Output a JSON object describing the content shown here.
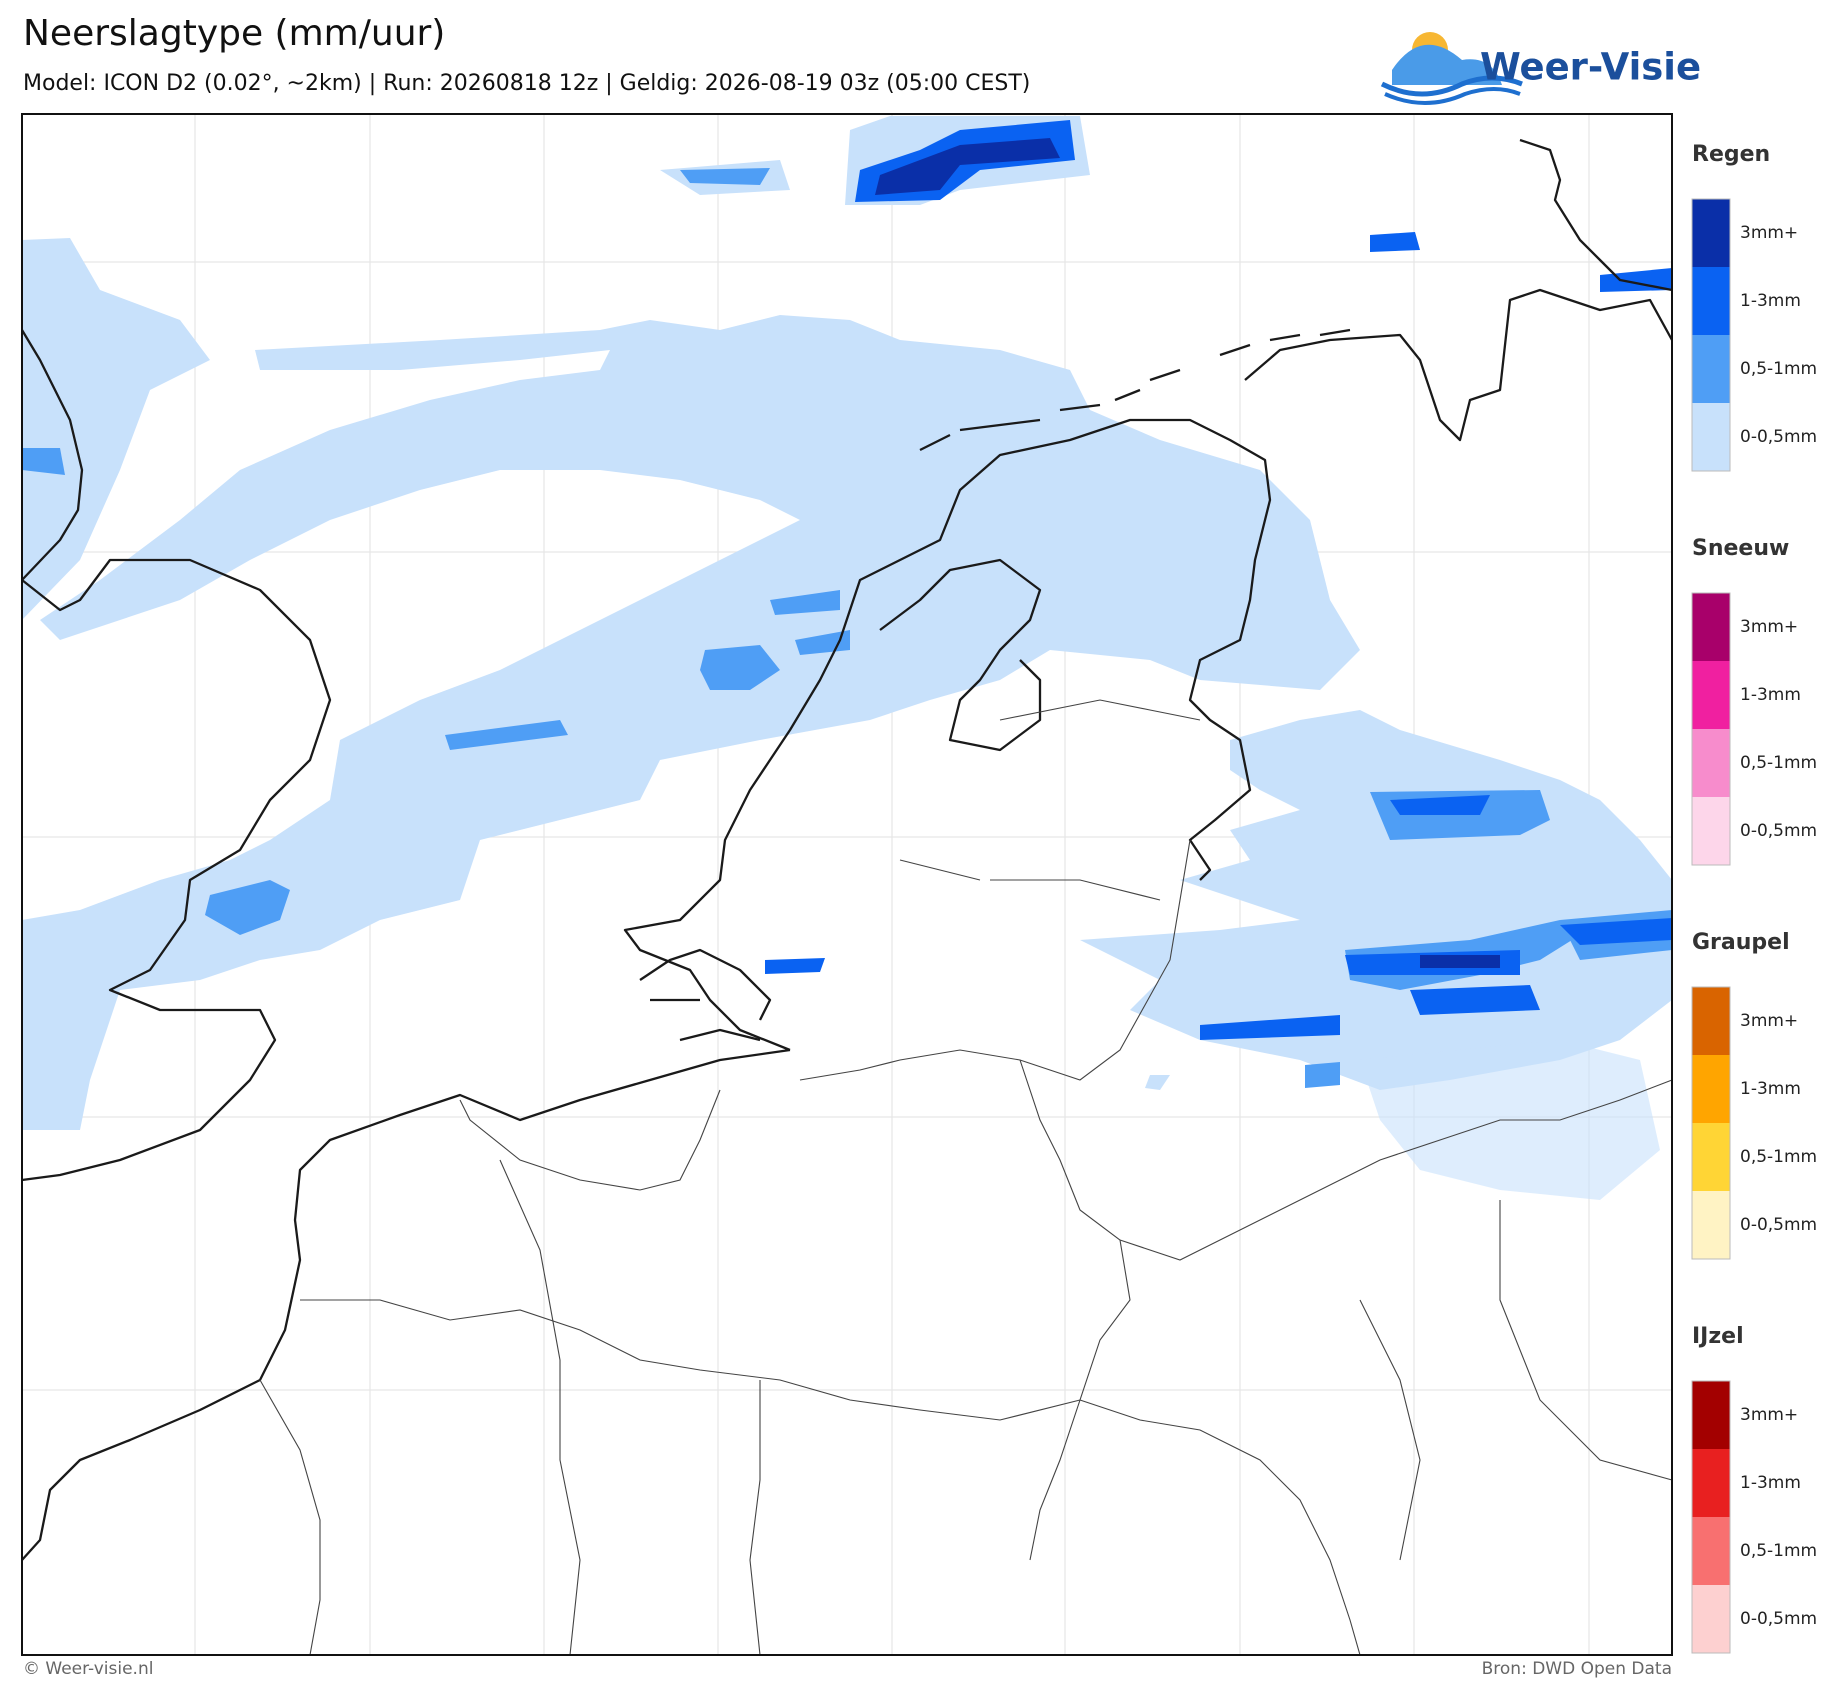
{
  "header": {
    "title": "Neerslagtype (mm/uur)",
    "subtitle": "Model: ICON D2 (0.02°, ~2km)  |  Run: 20260818 12z  |  Geldig: 2026-08-19 03z (05:00 CEST)"
  },
  "logo": {
    "text": "Weer-Visie"
  },
  "legend": [
    {
      "title": "Regen",
      "items": [
        {
          "label": "3mm+",
          "color": "#0a2fa8"
        },
        {
          "label": "1-3mm",
          "color": "#0a62f2"
        },
        {
          "label": "0,5-1mm",
          "color": "#4f9ef5"
        },
        {
          "label": "0-0,5mm",
          "color": "#c8e1fb"
        }
      ]
    },
    {
      "title": "Sneeuw",
      "items": [
        {
          "label": "3mm+",
          "color": "#a8006a"
        },
        {
          "label": "1-3mm",
          "color": "#f020a0"
        },
        {
          "label": "0,5-1mm",
          "color": "#f78ccc"
        },
        {
          "label": "0-0,5mm",
          "color": "#fdd6ea"
        }
      ]
    },
    {
      "title": "Graupel",
      "items": [
        {
          "label": "3mm+",
          "color": "#d96400"
        },
        {
          "label": "1-3mm",
          "color": "#ffa500"
        },
        {
          "label": "0,5-1mm",
          "color": "#ffd535"
        },
        {
          "label": "0-0,5mm",
          "color": "#fff3c4"
        }
      ]
    },
    {
      "title": "IJzel",
      "items": [
        {
          "label": "3mm+",
          "color": "#a30000"
        },
        {
          "label": "1-3mm",
          "color": "#e82020"
        },
        {
          "label": "0,5-1mm",
          "color": "#f87070"
        },
        {
          "label": "0-0,5mm",
          "color": "#fdd0d0"
        }
      ]
    }
  ],
  "footer": {
    "left": "© Weer-visie.nl",
    "right": "Bron: DWD Open Data"
  }
}
